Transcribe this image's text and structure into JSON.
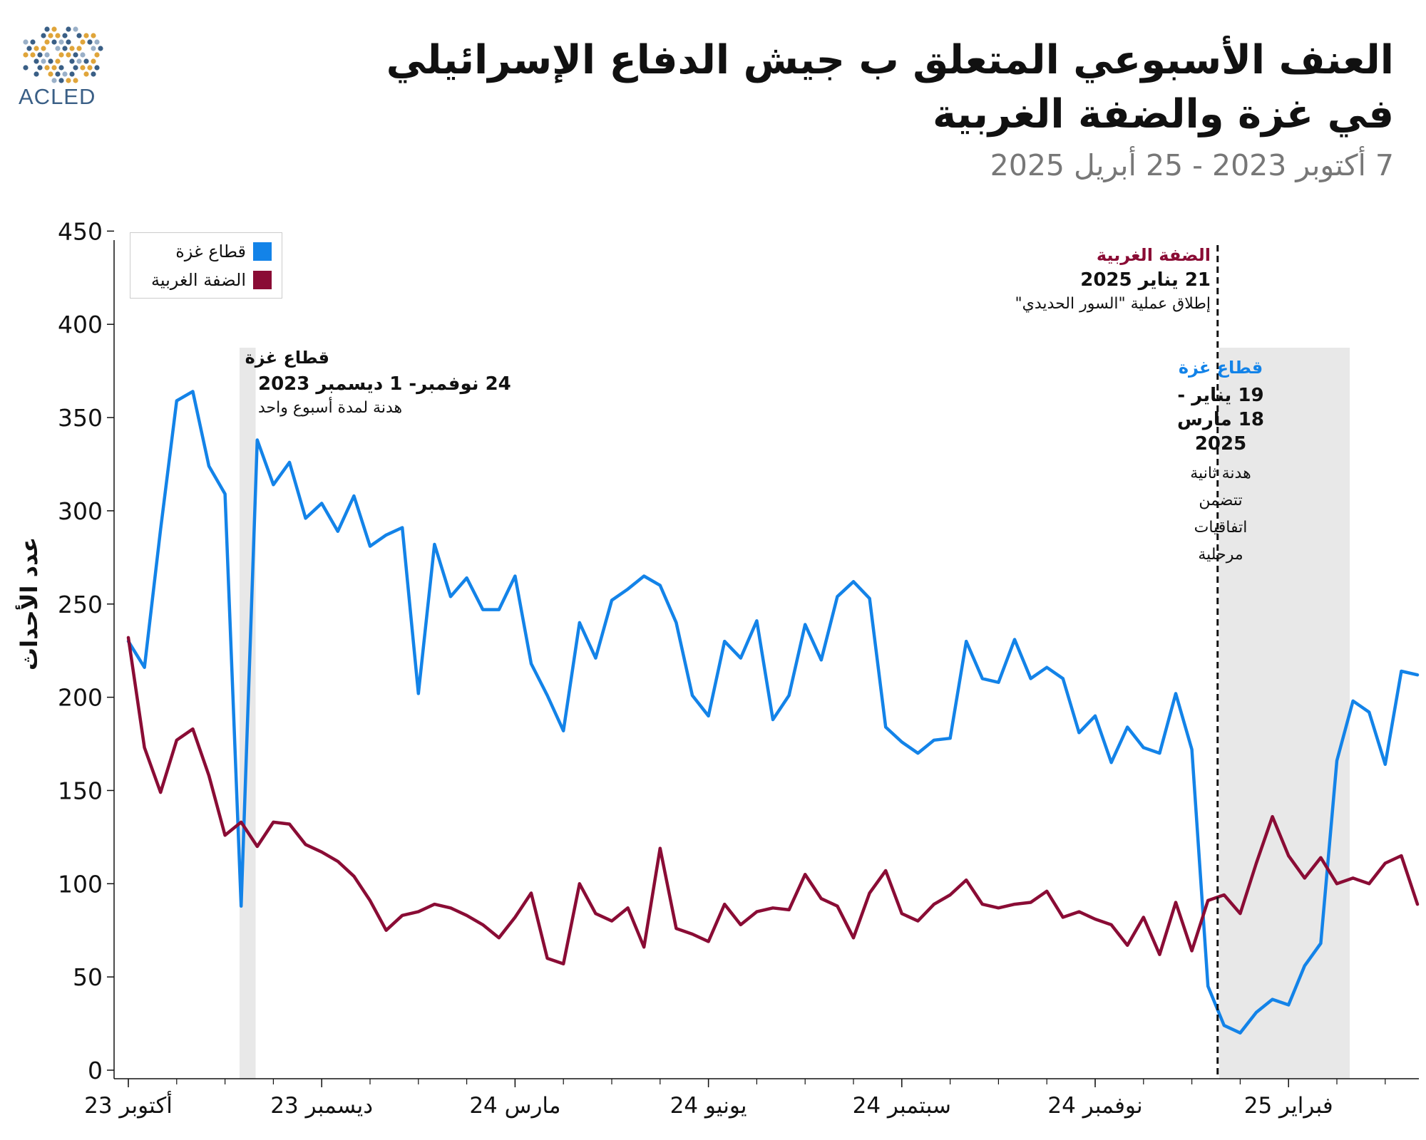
{
  "logo": {
    "text": "ACLED",
    "icon": "acled-globe-logo"
  },
  "title_line1": "العنف الأسبوعي المتعلق ب جيش الدفاع الإسرائيلي",
  "title_line2": "في غزة والضفة الغربية",
  "subtitle": "7 أكتوبر 2023 - 25 أبريل 2025",
  "colors": {
    "gaza": "#1383e8",
    "west_bank": "#8a0c35",
    "shade": "#e8e8e8",
    "gaza_text": "#1383e8",
    "west_bank_text": "#8a0c35"
  },
  "annotations": {
    "truce1": {
      "head": "قطاع غزة",
      "date": "24  نوفمبر- 1  ديسمبر 2023",
      "note": "هدنة لمدة أسبوع واحد"
    },
    "west_bank_op": {
      "head": "الضفة الغربية",
      "date": "21 يناير 2025",
      "note": "إطلاق عملية \"السور الحديدي\""
    },
    "truce2": {
      "head": "قطاع غزة",
      "date_lines": [
        "19 يناير -",
        "18 مارس",
        "2025"
      ],
      "note_lines": [
        "هدنة ثانية",
        "تتضمن",
        "اتفاقيات",
        "مرحلية"
      ]
    }
  },
  "chart_data": {
    "type": "line",
    "title": "العنف الأسبوعي المتعلق ب جيش الدفاع الإسرائيلي في غزة والضفة الغربية",
    "subtitle": "7 أكتوبر 2023 - 25 أبريل 2025",
    "xlabel": "",
    "ylabel": "عدد الأحداث",
    "ylim": [
      0,
      460
    ],
    "yticks": [
      0,
      50,
      100,
      150,
      200,
      250,
      300,
      350,
      400,
      450
    ],
    "x_tick_labels": [
      {
        "label": "أكتوبر 23",
        "week": 0
      },
      {
        "label": "ديسمبر 23",
        "week": 12
      },
      {
        "label": "مارس 24",
        "week": 24
      },
      {
        "label": "يونيو 24",
        "week": 36
      },
      {
        "label": "سبتمبر 24",
        "week": 48
      },
      {
        "label": "نوفمبر 24",
        "week": 60
      },
      {
        "label": "فبراير 25",
        "week": 72
      }
    ],
    "legend": "top-left",
    "grid": false,
    "shaded_periods": [
      {
        "name": "قطاع غزة",
        "start_week": 6.9,
        "end_week": 7.9
      },
      {
        "name": "قطاع غزة",
        "start_week": 67.7,
        "end_week": 75.8
      }
    ],
    "vertical_lines": [
      {
        "name": "الضفة الغربية",
        "week": 67.6,
        "style": "dashed"
      }
    ],
    "series": [
      {
        "name": "قطاع غزة",
        "color": "#1383e8",
        "values": [
          230,
          216,
          290,
          359,
          364,
          324,
          309,
          88,
          338,
          314,
          326,
          296,
          304,
          289,
          308,
          281,
          287,
          291,
          202,
          282,
          254,
          264,
          247,
          247,
          265,
          218,
          201,
          182,
          240,
          221,
          252,
          258,
          265,
          260,
          240,
          201,
          190,
          230,
          221,
          241,
          188,
          201,
          239,
          220,
          254,
          262,
          253,
          184,
          176,
          170,
          177,
          178,
          230,
          210,
          208,
          231,
          210,
          216,
          210,
          181,
          190,
          165,
          184,
          173,
          170,
          202,
          172,
          45,
          24,
          20,
          31,
          38,
          35,
          56,
          68,
          166,
          198,
          192,
          164,
          214,
          212
        ]
      },
      {
        "name": "الضفة الغربية",
        "color": "#8a0c35",
        "values": [
          232,
          173,
          149,
          177,
          183,
          158,
          126,
          133,
          120,
          133,
          132,
          121,
          117,
          112,
          104,
          91,
          75,
          83,
          85,
          89,
          87,
          83,
          78,
          71,
          82,
          95,
          60,
          57,
          100,
          84,
          80,
          87,
          66,
          119,
          76,
          73,
          69,
          89,
          78,
          85,
          87,
          86,
          105,
          92,
          88,
          71,
          95,
          107,
          84,
          80,
          89,
          94,
          102,
          89,
          87,
          89,
          90,
          96,
          82,
          85,
          81,
          78,
          67,
          82,
          62,
          90,
          64,
          91,
          94,
          84,
          111,
          136,
          115,
          103,
          114,
          100,
          103,
          100,
          111,
          115,
          89
        ]
      }
    ]
  }
}
